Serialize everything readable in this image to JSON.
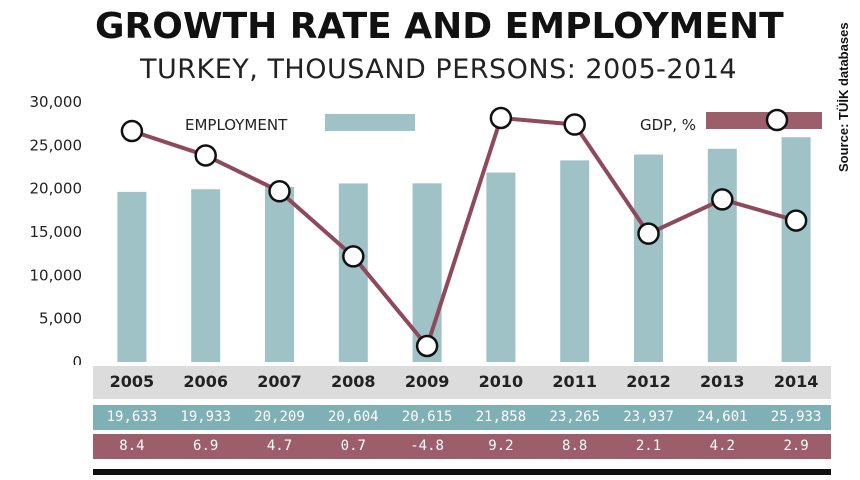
{
  "title": "GROWTH RATE AND EMPLOYMENT",
  "subtitle": "TURKEY, THOUSAND PERSONS: 2005-2014",
  "source": "Source: TÜİK databases",
  "colors": {
    "employment_bar": "#9ec2c6",
    "gdp_line": "#8e4a5b",
    "employment_band": "#7fb0b6",
    "gdp_band": "#9d5e6b",
    "year_band": "#dcdcdc"
  },
  "chart_data": {
    "type": "bar",
    "categories": [
      "2005",
      "2006",
      "2007",
      "2008",
      "2009",
      "2010",
      "2011",
      "2012",
      "2013",
      "2014"
    ],
    "ylim": [
      0,
      30000
    ],
    "y_ticks": [
      "0",
      "5,000",
      "10,000",
      "15,000",
      "20,000",
      "25,000",
      "30,000"
    ],
    "series": [
      {
        "name": "EMPLOYMENT",
        "kind": "bar",
        "values": [
          19633,
          19933,
          20209,
          20604,
          20615,
          21858,
          23265,
          23937,
          24601,
          25933
        ],
        "labels": [
          "19,633",
          "19,933",
          "20,209",
          "20,604",
          "20,615",
          "21,858",
          "23,265",
          "23,937",
          "24,601",
          "25,933"
        ]
      },
      {
        "name": "GDP, %",
        "kind": "line",
        "values": [
          8.4,
          6.9,
          4.7,
          0.7,
          -4.8,
          9.2,
          8.8,
          2.1,
          4.2,
          2.9
        ],
        "labels": [
          "8.4",
          "6.9",
          "4.7",
          "0.7",
          "-4.8",
          "9.2",
          "8.8",
          "2.1",
          "4.2",
          "2.9"
        ]
      }
    ],
    "legend": [
      "EMPLOYMENT",
      "GDP, %"
    ],
    "legend_placement": "top"
  }
}
